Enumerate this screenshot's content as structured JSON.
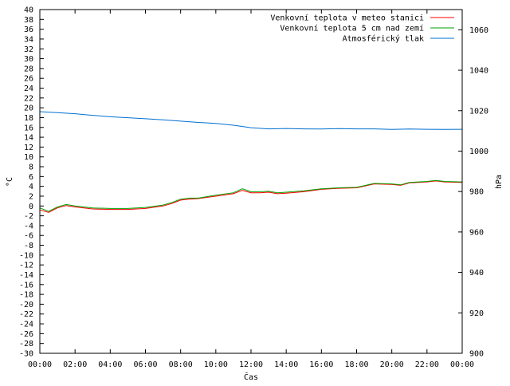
{
  "chart_data": {
    "type": "line",
    "xlabel": "Čas",
    "ylabel_left": "°C",
    "ylabel_right": "hPa",
    "x_ticks": [
      "00:00",
      "02:00",
      "04:00",
      "06:00",
      "08:00",
      "10:00",
      "12:00",
      "14:00",
      "16:00",
      "18:00",
      "20:00",
      "22:00",
      "00:00"
    ],
    "x_range_hours": [
      0,
      24
    ],
    "ylim_left": [
      -30,
      40
    ],
    "ylim_right": [
      900,
      1070
    ],
    "y_ticks_left": [
      40,
      38,
      36,
      34,
      32,
      30,
      28,
      26,
      24,
      22,
      20,
      18,
      16,
      14,
      12,
      10,
      8,
      6,
      4,
      2,
      0,
      -2,
      -4,
      -6,
      -8,
      -10,
      -12,
      -14,
      -16,
      -18,
      -20,
      -22,
      -24,
      -26,
      -28,
      -30
    ],
    "y_ticks_right": [
      1060,
      1040,
      1020,
      1000,
      980,
      960,
      940,
      920,
      900
    ],
    "legend_position": "top-right",
    "grid": false,
    "series": [
      {
        "name": "Venkovní teplota v meteo stanici",
        "axis": "left",
        "color": "#ff0000",
        "x": [
          0,
          0.5,
          1,
          1.5,
          2,
          3,
          4,
          5,
          6,
          7,
          7.5,
          8,
          8.5,
          9,
          10,
          11,
          11.5,
          12,
          12.5,
          13,
          13.5,
          14,
          15,
          16,
          17,
          18,
          19,
          20,
          20.5,
          21,
          22,
          22.5,
          23,
          24
        ],
        "values": [
          -0.8,
          -1.3,
          -0.4,
          0.1,
          -0.2,
          -0.6,
          -0.7,
          -0.7,
          -0.5,
          0.0,
          0.5,
          1.2,
          1.4,
          1.5,
          2.0,
          2.5,
          3.2,
          2.7,
          2.7,
          2.8,
          2.5,
          2.6,
          2.9,
          3.4,
          3.6,
          3.7,
          4.5,
          4.4,
          4.2,
          4.7,
          4.9,
          5.1,
          4.9,
          4.8
        ]
      },
      {
        "name": "Venkovní teplota 5 cm nad zemí",
        "axis": "left",
        "color": "#00a000",
        "x": [
          0,
          0.5,
          1,
          1.5,
          2,
          3,
          4,
          5,
          6,
          7,
          7.5,
          8,
          8.5,
          9,
          10,
          11,
          11.5,
          12,
          12.5,
          13,
          13.5,
          14,
          15,
          16,
          17,
          18,
          19,
          20,
          20.5,
          21,
          22,
          22.5,
          23,
          24
        ],
        "values": [
          -0.4,
          -1.1,
          -0.2,
          0.3,
          0.0,
          -0.4,
          -0.5,
          -0.5,
          -0.3,
          0.2,
          0.7,
          1.4,
          1.6,
          1.6,
          2.2,
          2.7,
          3.5,
          2.9,
          2.9,
          3.0,
          2.7,
          2.8,
          3.1,
          3.5,
          3.7,
          3.8,
          4.6,
          4.5,
          4.3,
          4.8,
          5.0,
          5.2,
          5.0,
          4.9
        ]
      },
      {
        "name": "Atmosférický tlak",
        "axis": "right",
        "color": "#0070d0",
        "x": [
          0,
          1,
          2,
          3,
          4,
          5,
          6,
          7,
          8,
          9,
          10,
          11,
          12,
          13,
          14,
          15,
          16,
          17,
          18,
          19,
          20,
          21,
          22,
          23,
          24
        ],
        "values": [
          1019.5,
          1019.0,
          1018.5,
          1017.7,
          1017.0,
          1016.5,
          1016.0,
          1015.5,
          1014.8,
          1014.2,
          1013.7,
          1012.8,
          1011.6,
          1011.0,
          1011.2,
          1011.0,
          1010.9,
          1011.1,
          1011.0,
          1011.0,
          1010.7,
          1010.9,
          1010.8,
          1010.7,
          1010.8
        ]
      }
    ]
  }
}
